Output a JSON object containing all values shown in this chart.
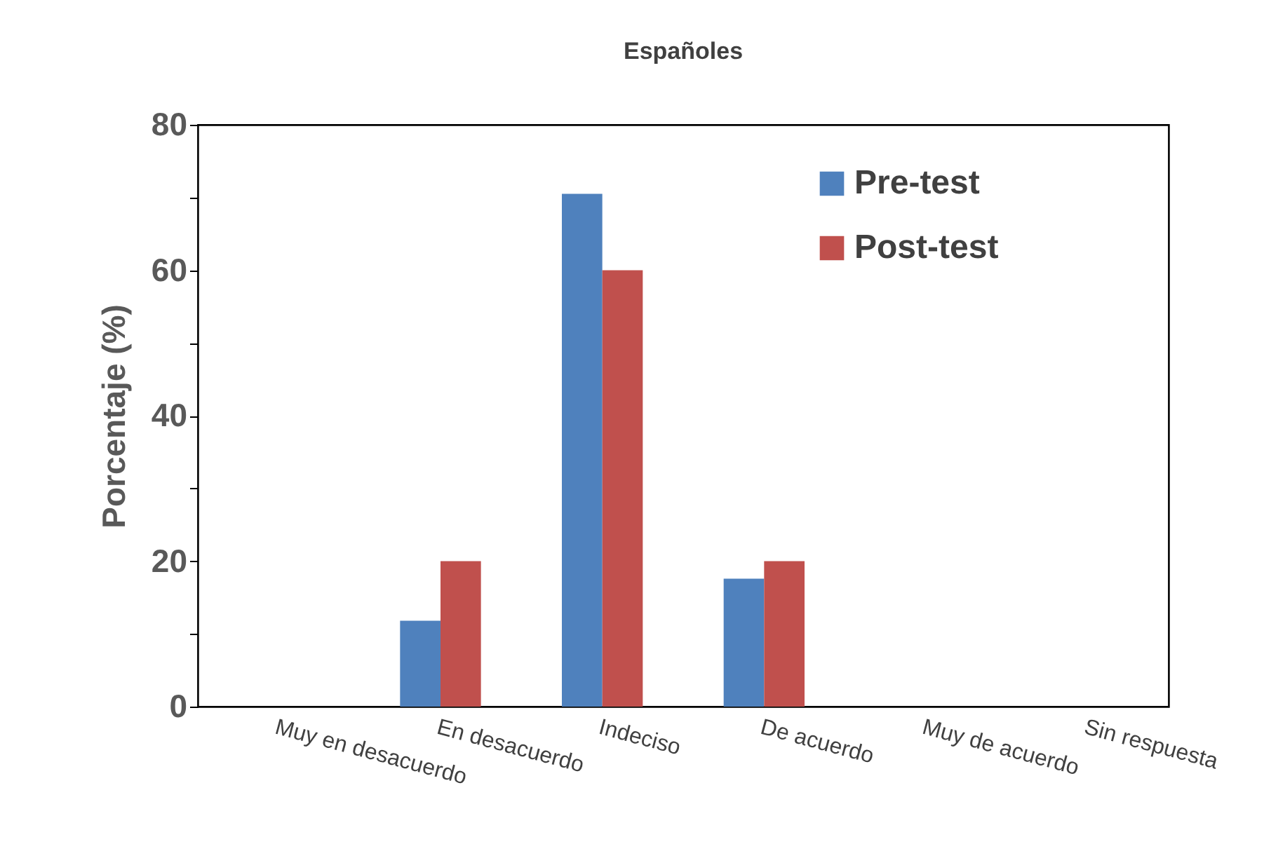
{
  "chart_data": {
    "type": "bar",
    "title": "Españoles",
    "ylabel": "Porcentaje (%)",
    "categories": [
      "Muy en desacuerdo",
      "En desacuerdo",
      "Indeciso",
      "De acuerdo",
      "Muy de acuerdo",
      "Sin respuesta"
    ],
    "series": [
      {
        "name": "Pre-test",
        "color": "#4f81bd",
        "values": [
          0,
          11.8,
          70.5,
          17.6,
          0,
          0
        ]
      },
      {
        "name": "Post-test",
        "color": "#c0504d",
        "values": [
          0,
          20,
          60,
          20,
          0,
          0
        ]
      }
    ],
    "ylim": [
      0,
      80
    ],
    "yticks": [
      0,
      {
        "value": 10,
        "label": null
      },
      20,
      {
        "value": 30,
        "label": null
      },
      40,
      {
        "value": 50,
        "label": null
      },
      60,
      {
        "value": 70,
        "label": null
      },
      80
    ],
    "grid": false,
    "legend": "top right"
  }
}
